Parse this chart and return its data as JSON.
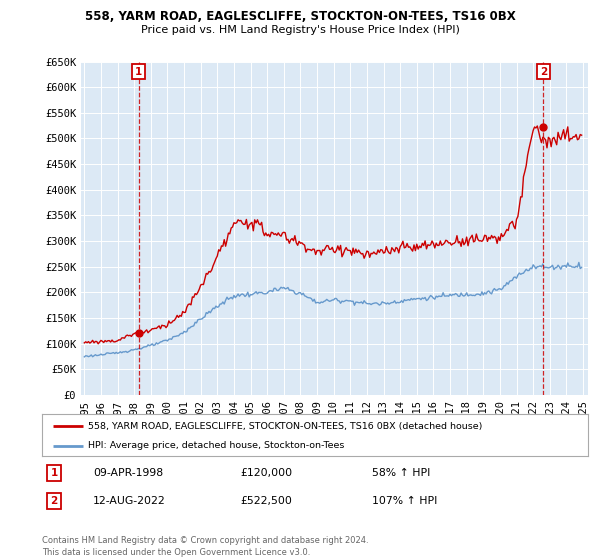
{
  "title1": "558, YARM ROAD, EAGLESCLIFFE, STOCKTON-ON-TEES, TS16 0BX",
  "title2": "Price paid vs. HM Land Registry's House Price Index (HPI)",
  "ylim": [
    0,
    650000
  ],
  "yticks": [
    0,
    50000,
    100000,
    150000,
    200000,
    250000,
    300000,
    350000,
    400000,
    450000,
    500000,
    550000,
    600000,
    650000
  ],
  "ytick_labels": [
    "£0",
    "£50K",
    "£100K",
    "£150K",
    "£200K",
    "£250K",
    "£300K",
    "£350K",
    "£400K",
    "£450K",
    "£500K",
    "£550K",
    "£600K",
    "£650K"
  ],
  "background_color": "#ffffff",
  "plot_bg_color": "#dce9f5",
  "grid_color": "#b0c8e0",
  "red_color": "#cc0000",
  "blue_color": "#6699cc",
  "point1_x": 1998.27,
  "point1_y": 120000,
  "point1_label": "1",
  "point1_date": "09-APR-1998",
  "point1_price": "£120,000",
  "point1_hpi": "58% ↑ HPI",
  "point2_x": 2022.62,
  "point2_y": 522500,
  "point2_label": "2",
  "point2_date": "12-AUG-2022",
  "point2_price": "£522,500",
  "point2_hpi": "107% ↑ HPI",
  "legend_line1": "558, YARM ROAD, EAGLESCLIFFE, STOCKTON-ON-TEES, TS16 0BX (detached house)",
  "legend_line2": "HPI: Average price, detached house, Stockton-on-Tees",
  "footer": "Contains HM Land Registry data © Crown copyright and database right 2024.\nThis data is licensed under the Open Government Licence v3.0.",
  "xmin": 1994.8,
  "xmax": 2025.3,
  "hpi_year_values": {
    "1995": 75000,
    "1996": 78000,
    "1997": 82000,
    "1998": 88000,
    "1999": 96000,
    "2000": 106000,
    "2001": 122000,
    "2002": 148000,
    "2003": 173000,
    "2004": 193000,
    "2005": 196000,
    "2006": 200000,
    "2007": 208000,
    "2008": 198000,
    "2009": 180000,
    "2010": 185000,
    "2011": 183000,
    "2012": 178000,
    "2013": 178000,
    "2014": 183000,
    "2015": 187000,
    "2016": 190000,
    "2017": 194000,
    "2018": 196000,
    "2019": 198000,
    "2020": 205000,
    "2021": 230000,
    "2022": 252000,
    "2023": 248000,
    "2024": 252000,
    "2025": 252000
  },
  "pp_year_values": {
    "1995": 102000,
    "1996": 104000,
    "1997": 106000,
    "1998": 120000,
    "1999": 126000,
    "2000": 138000,
    "2001": 160000,
    "2002": 210000,
    "2003": 270000,
    "2004": 330000,
    "2005": 340000,
    "2006": 315000,
    "2007": 310000,
    "2008": 295000,
    "2009": 278000,
    "2010": 285000,
    "2011": 282000,
    "2012": 272000,
    "2013": 278000,
    "2014": 286000,
    "2015": 288000,
    "2016": 292000,
    "2017": 298000,
    "2018": 302000,
    "2019": 305000,
    "2020": 308000,
    "2021": 335000,
    "2022": 522500,
    "2023": 490000,
    "2024": 505000,
    "2025": 505000
  }
}
